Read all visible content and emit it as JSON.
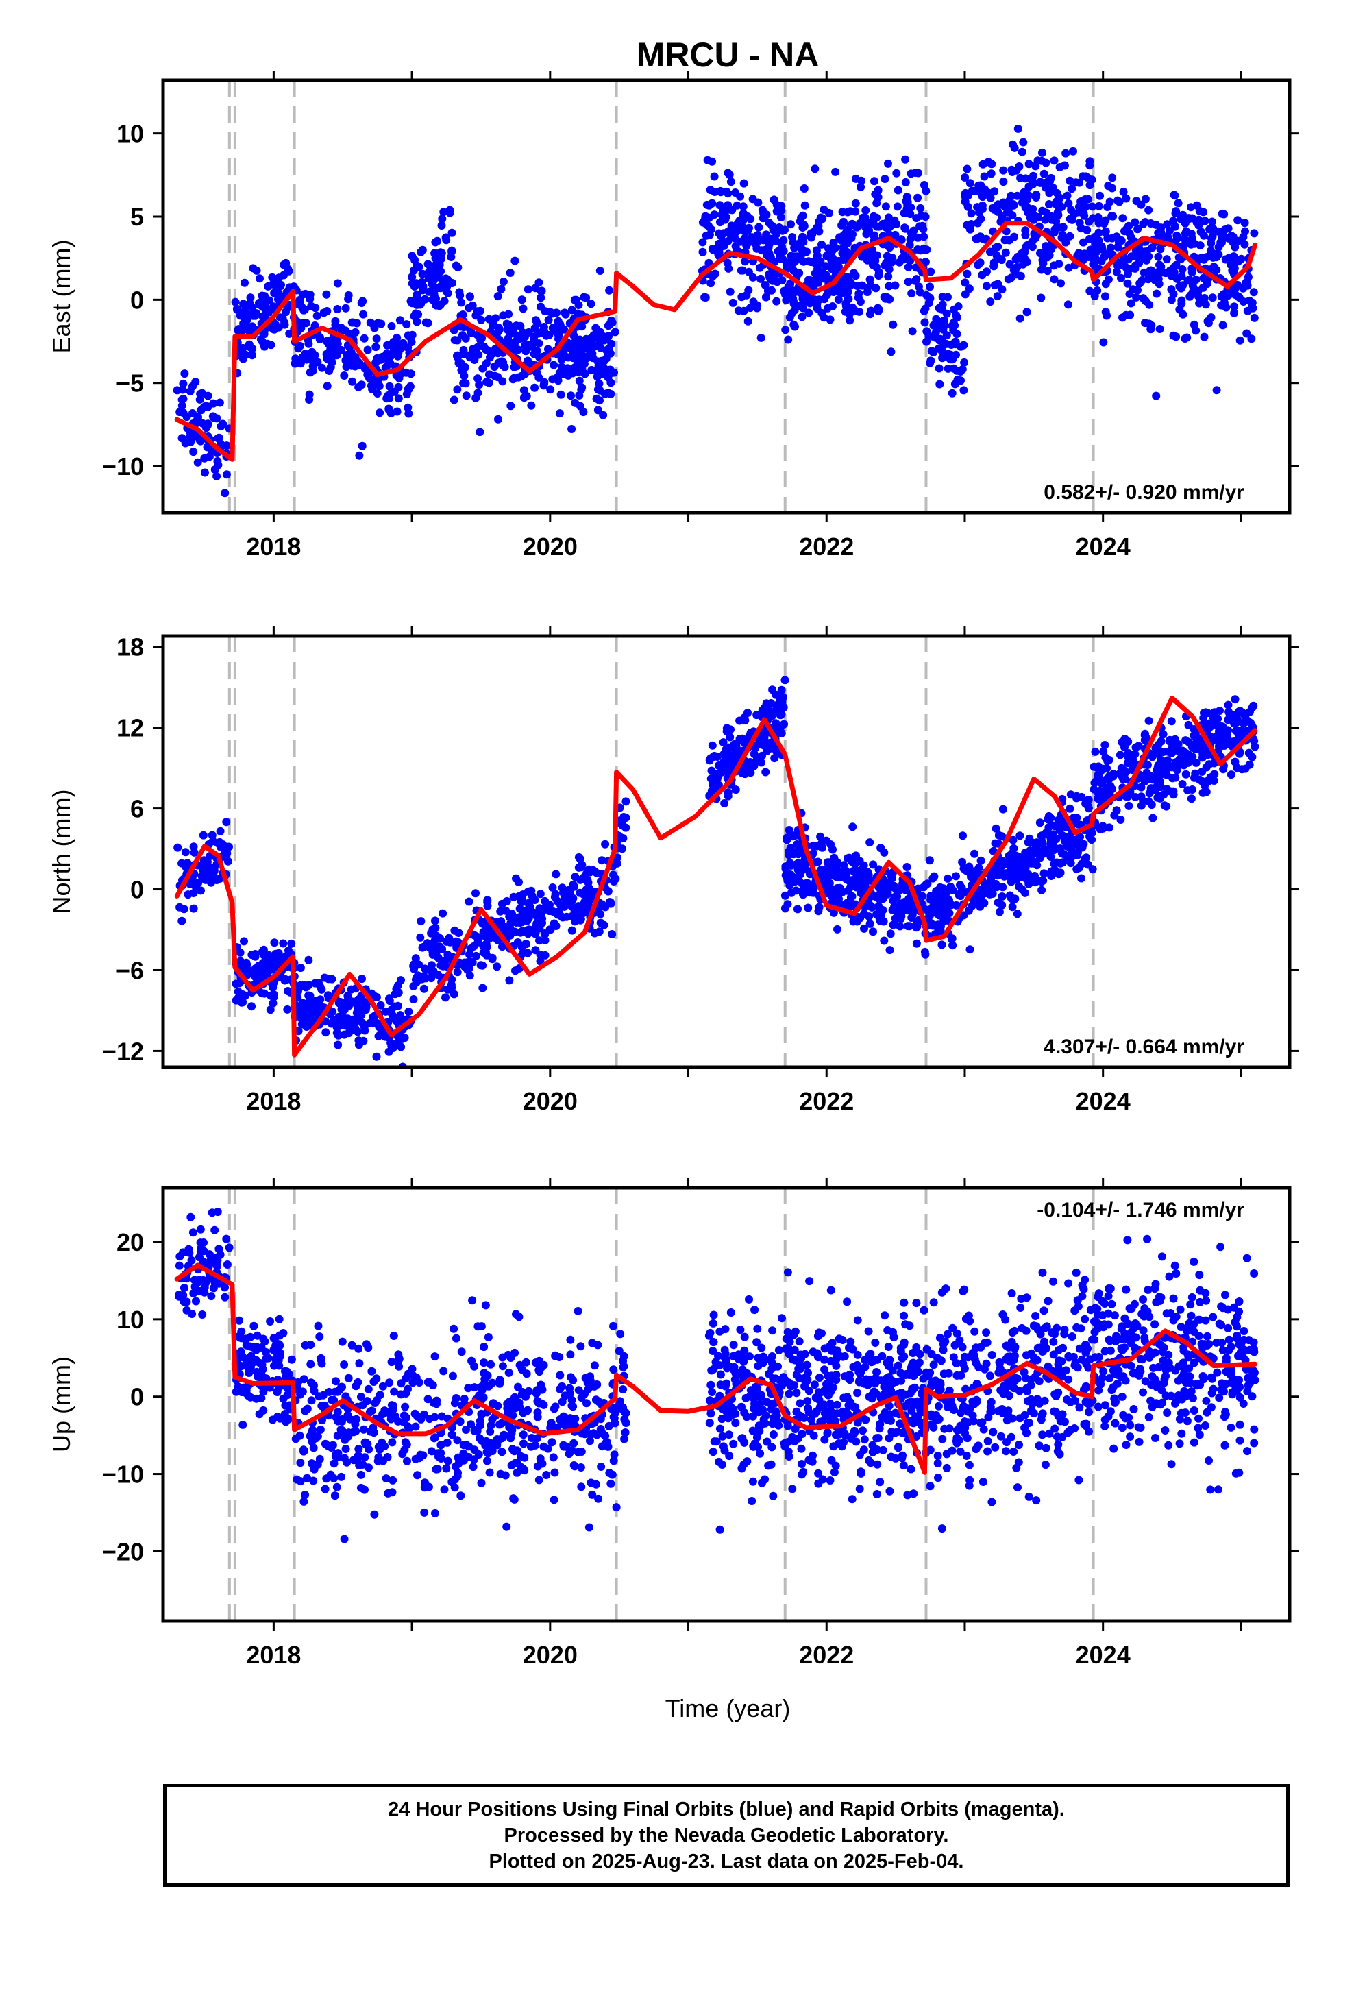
{
  "chart_data": {
    "type": "scatter",
    "title": "MRCU - NA",
    "xlabel": "Time (year)",
    "xlim": [
      2017.2,
      2025.35
    ],
    "x_ticks": [
      2018,
      2020,
      2022,
      2024
    ],
    "x_tick_labels": [
      "2018",
      "2020",
      "2022",
      "2024"
    ],
    "event_lines": [
      2017.68,
      2017.72,
      2018.15,
      2020.48,
      2021.7,
      2022.72,
      2023.93
    ],
    "colors": {
      "points": "#0000ff",
      "model": "#ff0000",
      "event_line": "#bbbbbb"
    },
    "panels": [
      {
        "name": "east",
        "ylabel": "East (mm)",
        "ylim": [
          -12.8,
          13.2
        ],
        "y_ticks": [
          -10,
          -5,
          0,
          5,
          10
        ],
        "y_tick_labels": [
          "−10",
          "−5",
          "0",
          "5",
          "10"
        ],
        "rate_text": "0.582+/- 0.920 mm/yr",
        "rate_position": "bottom-right",
        "model_segments": [
          [
            [
              2017.3,
              -7.2
            ],
            [
              2017.45,
              -7.8
            ],
            [
              2017.6,
              -9.0
            ],
            [
              2017.7,
              -9.6
            ]
          ],
          [
            [
              2017.72,
              -2.2
            ],
            [
              2017.85,
              -2.2
            ],
            [
              2018.0,
              -1.0
            ],
            [
              2018.14,
              0.5
            ]
          ],
          [
            [
              2018.15,
              -2.5
            ],
            [
              2018.35,
              -1.7
            ],
            [
              2018.55,
              -2.4
            ],
            [
              2018.75,
              -4.5
            ],
            [
              2018.9,
              -4.2
            ],
            [
              2019.1,
              -2.5
            ],
            [
              2019.35,
              -1.2
            ],
            [
              2019.55,
              -2.1
            ],
            [
              2019.85,
              -4.3
            ],
            [
              2020.05,
              -3.0
            ],
            [
              2020.2,
              -1.2
            ],
            [
              2020.47,
              -0.7
            ]
          ],
          [
            [
              2020.48,
              1.6
            ],
            [
              2020.6,
              0.8
            ],
            [
              2020.75,
              -0.3
            ],
            [
              2020.9,
              -0.6
            ],
            [
              2021.1,
              1.5
            ],
            [
              2021.3,
              2.8
            ],
            [
              2021.5,
              2.5
            ],
            [
              2021.7,
              1.6
            ],
            [
              2021.9,
              0.4
            ],
            [
              2022.05,
              1.0
            ],
            [
              2022.25,
              3.1
            ],
            [
              2022.45,
              3.7
            ],
            [
              2022.6,
              2.9
            ],
            [
              2022.71,
              1.8
            ]
          ],
          [
            [
              2022.72,
              1.2
            ],
            [
              2022.9,
              1.3
            ],
            [
              2023.1,
              2.7
            ],
            [
              2023.3,
              4.6
            ],
            [
              2023.45,
              4.6
            ],
            [
              2023.65,
              3.5
            ],
            [
              2023.8,
              2.3
            ],
            [
              2023.92,
              1.7
            ]
          ],
          [
            [
              2023.93,
              1.2
            ],
            [
              2024.1,
              2.6
            ],
            [
              2024.3,
              3.7
            ],
            [
              2024.5,
              3.3
            ],
            [
              2024.7,
              1.9
            ],
            [
              2024.9,
              0.8
            ],
            [
              2025.05,
              2.0
            ],
            [
              2025.1,
              3.3
            ]
          ]
        ],
        "scatter_clusters": [
          [
            2017.3,
            2017.68,
            -6.5,
            -9.5,
            1.3,
            80
          ],
          [
            2017.72,
            2018.15,
            -2.0,
            0.5,
            1.2,
            130
          ],
          [
            2018.15,
            2019.0,
            -2.0,
            -4.5,
            1.5,
            220
          ],
          [
            2019.0,
            2019.3,
            0.0,
            2.5,
            1.6,
            90
          ],
          [
            2019.3,
            2020.48,
            -2.5,
            -3.0,
            1.6,
            380
          ],
          [
            2021.1,
            2021.7,
            4.0,
            2.5,
            1.8,
            200
          ],
          [
            2021.7,
            2022.72,
            1.5,
            4.0,
            2.0,
            380
          ],
          [
            2022.72,
            2023.0,
            -1.5,
            -3.5,
            1.6,
            80
          ],
          [
            2023.0,
            2023.93,
            4.0,
            5.0,
            2.3,
            280
          ],
          [
            2023.93,
            2025.1,
            3.0,
            1.5,
            2.0,
            380
          ]
        ]
      },
      {
        "name": "north",
        "ylabel": "North (mm)",
        "ylim": [
          -13.2,
          18.8
        ],
        "y_ticks": [
          -12,
          -6,
          0,
          6,
          12,
          18
        ],
        "y_tick_labels": [
          "−12",
          "−6",
          "0",
          "6",
          "12",
          "18"
        ],
        "rate_text": "4.307+/- 0.664 mm/yr",
        "rate_position": "bottom-right",
        "model_segments": [
          [
            [
              2017.3,
              -0.5
            ],
            [
              2017.5,
              3.2
            ],
            [
              2017.6,
              2.5
            ],
            [
              2017.7,
              -1.0
            ]
          ],
          [
            [
              2017.72,
              -5.8
            ],
            [
              2017.85,
              -7.5
            ],
            [
              2018.0,
              -6.5
            ],
            [
              2018.14,
              -5.0
            ]
          ],
          [
            [
              2018.15,
              -12.3
            ],
            [
              2018.35,
              -9.5
            ],
            [
              2018.55,
              -6.3
            ],
            [
              2018.7,
              -8.2
            ],
            [
              2018.85,
              -10.8
            ],
            [
              2019.05,
              -9.3
            ],
            [
              2019.25,
              -6.5
            ],
            [
              2019.5,
              -1.5
            ],
            [
              2019.65,
              -3.5
            ],
            [
              2019.85,
              -6.3
            ],
            [
              2020.05,
              -5.0
            ],
            [
              2020.25,
              -3.2
            ],
            [
              2020.47,
              3.0
            ]
          ],
          [
            [
              2020.48,
              8.7
            ],
            [
              2020.6,
              7.4
            ],
            [
              2020.8,
              3.8
            ],
            [
              2021.05,
              5.4
            ],
            [
              2021.3,
              8.0
            ],
            [
              2021.55,
              12.6
            ],
            [
              2021.7,
              10.0
            ],
            [
              2021.85,
              3.0
            ],
            [
              2022.0,
              -1.2
            ],
            [
              2022.2,
              -1.8
            ],
            [
              2022.45,
              2.0
            ],
            [
              2022.6,
              0.5
            ],
            [
              2022.71,
              -2.5
            ]
          ],
          [
            [
              2022.72,
              -3.8
            ],
            [
              2022.85,
              -3.5
            ],
            [
              2023.0,
              -1.0
            ],
            [
              2023.3,
              3.6
            ],
            [
              2023.5,
              8.2
            ],
            [
              2023.65,
              6.9
            ],
            [
              2023.8,
              4.2
            ],
            [
              2023.92,
              4.8
            ]
          ],
          [
            [
              2023.93,
              5.6
            ],
            [
              2024.2,
              7.8
            ],
            [
              2024.5,
              14.2
            ],
            [
              2024.65,
              12.8
            ],
            [
              2024.85,
              9.3
            ],
            [
              2025.1,
              11.8
            ]
          ]
        ],
        "scatter_clusters": [
          [
            2017.3,
            2017.68,
            0.5,
            2.5,
            1.3,
            80
          ],
          [
            2017.72,
            2018.15,
            -7.0,
            -5.5,
            1.0,
            130
          ],
          [
            2018.15,
            2019.0,
            -8.5,
            -10.0,
            1.3,
            220
          ],
          [
            2019.0,
            2020.48,
            -6.0,
            0.5,
            1.4,
            380
          ],
          [
            2020.48,
            2020.55,
            3.5,
            4.5,
            1.2,
            20
          ],
          [
            2021.15,
            2021.7,
            8.0,
            13.0,
            1.4,
            200
          ],
          [
            2021.7,
            2022.72,
            2.0,
            -2.0,
            1.4,
            380
          ],
          [
            2022.72,
            2023.93,
            -2.0,
            5.0,
            1.4,
            360
          ],
          [
            2023.93,
            2025.1,
            7.0,
            12.0,
            1.5,
            380
          ]
        ]
      },
      {
        "name": "up",
        "ylabel": "Up (mm)",
        "ylim": [
          -29.0,
          27.0
        ],
        "y_ticks": [
          -20,
          -10,
          0,
          10,
          20
        ],
        "y_tick_labels": [
          "−20",
          "−10",
          "0",
          "10",
          "20"
        ],
        "rate_text": "-0.104+/- 1.746 mm/yr",
        "rate_position": "top-right",
        "model_segments": [
          [
            [
              2017.3,
              15.2
            ],
            [
              2017.45,
              17.0
            ],
            [
              2017.6,
              15.5
            ],
            [
              2017.7,
              14.5
            ]
          ],
          [
            [
              2017.72,
              2.5
            ],
            [
              2017.85,
              1.7
            ],
            [
              2018.14,
              1.8
            ]
          ],
          [
            [
              2018.15,
              -4.3
            ],
            [
              2018.35,
              -2.3
            ],
            [
              2018.5,
              -0.5
            ],
            [
              2018.75,
              -3.5
            ],
            [
              2018.9,
              -4.8
            ],
            [
              2019.1,
              -4.8
            ],
            [
              2019.25,
              -3.8
            ],
            [
              2019.45,
              -0.5
            ],
            [
              2019.7,
              -3.0
            ],
            [
              2019.95,
              -4.8
            ],
            [
              2020.2,
              -4.3
            ],
            [
              2020.47,
              -0.3
            ]
          ],
          [
            [
              2020.48,
              2.8
            ],
            [
              2020.6,
              1.3
            ],
            [
              2020.8,
              -1.8
            ],
            [
              2021.0,
              -1.9
            ],
            [
              2021.2,
              -1.2
            ],
            [
              2021.45,
              2.3
            ],
            [
              2021.6,
              1.5
            ],
            [
              2021.7,
              -2.5
            ],
            [
              2021.85,
              -4.0
            ],
            [
              2022.1,
              -3.8
            ],
            [
              2022.35,
              -1.2
            ],
            [
              2022.5,
              -0.1
            ],
            [
              2022.71,
              -9.8
            ]
          ],
          [
            [
              2022.72,
              1.0
            ],
            [
              2022.8,
              0.0
            ],
            [
              2023.0,
              0.2
            ],
            [
              2023.2,
              1.6
            ],
            [
              2023.45,
              4.3
            ],
            [
              2023.6,
              3.0
            ],
            [
              2023.8,
              0.5
            ],
            [
              2023.92,
              0.0
            ]
          ],
          [
            [
              2023.93,
              4.0
            ],
            [
              2024.2,
              4.8
            ],
            [
              2024.45,
              8.5
            ],
            [
              2024.6,
              7.0
            ],
            [
              2024.8,
              4.0
            ],
            [
              2025.1,
              4.2
            ]
          ]
        ],
        "scatter_clusters": [
          [
            2017.3,
            2017.68,
            15.0,
            18.0,
            3.0,
            80
          ],
          [
            2017.72,
            2018.15,
            5.0,
            2.0,
            3.5,
            130
          ],
          [
            2018.15,
            2020.48,
            -3.0,
            -3.0,
            5.0,
            600
          ],
          [
            2020.48,
            2020.55,
            1.0,
            1.0,
            3.0,
            20
          ],
          [
            2021.15,
            2022.72,
            0.0,
            0.0,
            5.5,
            580
          ],
          [
            2022.72,
            2023.93,
            0.0,
            4.0,
            5.5,
            360
          ],
          [
            2023.93,
            2025.1,
            6.0,
            3.0,
            5.5,
            380
          ]
        ]
      }
    ]
  },
  "footer": {
    "line1": "24 Hour Positions Using Final Orbits (blue) and Rapid Orbits (magenta).",
    "line2": "Processed by the Nevada Geodetic Laboratory.",
    "line3": "Plotted on 2025-Aug-23. Last data on 2025-Feb-04."
  }
}
